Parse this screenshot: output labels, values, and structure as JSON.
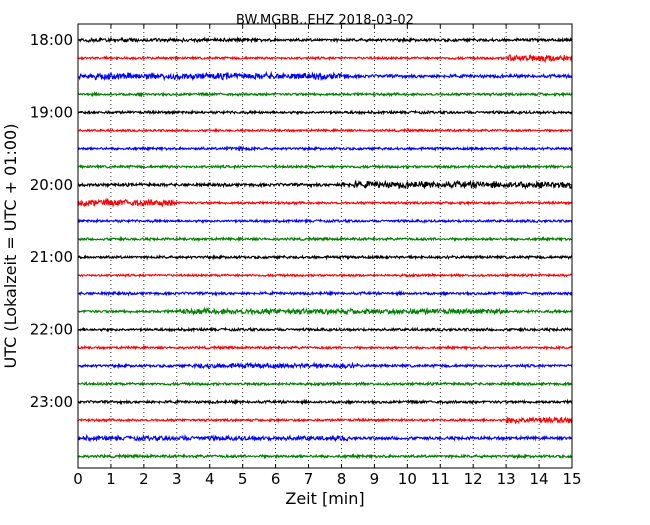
{
  "chart_data": {
    "type": "line",
    "title": "BW.MGBB..EHZ 2018-03-02",
    "xlabel": "Zeit  [min]",
    "ylabel": "UTC (Lokalzeit = UTC + 01:00)",
    "xlim": [
      0,
      15
    ],
    "x_ticks": [
      "0",
      "1",
      "2",
      "3",
      "4",
      "5",
      "6",
      "7",
      "8",
      "9",
      "10",
      "11",
      "12",
      "13",
      "14",
      "15"
    ],
    "y_tick_labels": [
      "18:00",
      "19:00",
      "20:00",
      "21:00",
      "22:00",
      "23:00"
    ],
    "grid": "x-dotted",
    "colors": {
      "black": "#000000",
      "red": "#ff0000",
      "blue": "#0000ff",
      "green": "#008000"
    },
    "series": [
      {
        "start": "18:00",
        "color": "black",
        "amp": 1.6,
        "bursts": [
          {
            "from": 0.0,
            "to": 5.5,
            "gain": 1.3
          }
        ]
      },
      {
        "start": "18:15",
        "color": "red",
        "amp": 1.3,
        "bursts": [
          {
            "from": 13.0,
            "to": 15.0,
            "gain": 3.0
          }
        ]
      },
      {
        "start": "18:30",
        "color": "blue",
        "amp": 1.8,
        "bursts": [
          {
            "from": 0.0,
            "to": 8.2,
            "gain": 2.0
          }
        ]
      },
      {
        "start": "18:45",
        "color": "green",
        "amp": 1.4,
        "bursts": []
      },
      {
        "start": "19:00",
        "color": "black",
        "amp": 1.5,
        "bursts": []
      },
      {
        "start": "19:15",
        "color": "red",
        "amp": 1.2,
        "bursts": []
      },
      {
        "start": "19:30",
        "color": "blue",
        "amp": 1.4,
        "bursts": [
          {
            "from": 4.5,
            "to": 5.3,
            "gain": 1.8
          }
        ]
      },
      {
        "start": "19:45",
        "color": "green",
        "amp": 1.4,
        "bursts": []
      },
      {
        "start": "20:00",
        "color": "black",
        "amp": 1.7,
        "bursts": [
          {
            "from": 8.0,
            "to": 15.0,
            "gain": 2.2
          }
        ]
      },
      {
        "start": "20:15",
        "color": "red",
        "amp": 1.3,
        "bursts": [
          {
            "from": 0.0,
            "to": 3.0,
            "gain": 3.0
          }
        ]
      },
      {
        "start": "20:30",
        "color": "blue",
        "amp": 1.4,
        "bursts": []
      },
      {
        "start": "20:45",
        "color": "green",
        "amp": 1.4,
        "bursts": []
      },
      {
        "start": "21:00",
        "color": "black",
        "amp": 1.5,
        "bursts": []
      },
      {
        "start": "21:15",
        "color": "red",
        "amp": 1.2,
        "bursts": []
      },
      {
        "start": "21:30",
        "color": "blue",
        "amp": 1.5,
        "bursts": []
      },
      {
        "start": "21:45",
        "color": "green",
        "amp": 1.5,
        "bursts": [
          {
            "from": 3.0,
            "to": 13.0,
            "gain": 2.0
          }
        ]
      },
      {
        "start": "22:00",
        "color": "black",
        "amp": 1.5,
        "bursts": []
      },
      {
        "start": "22:15",
        "color": "red",
        "amp": 1.3,
        "bursts": []
      },
      {
        "start": "22:30",
        "color": "blue",
        "amp": 1.5,
        "bursts": [
          {
            "from": 3.5,
            "to": 8.5,
            "gain": 1.8
          }
        ]
      },
      {
        "start": "22:45",
        "color": "green",
        "amp": 1.4,
        "bursts": []
      },
      {
        "start": "23:00",
        "color": "black",
        "amp": 1.5,
        "bursts": []
      },
      {
        "start": "23:15",
        "color": "red",
        "amp": 1.3,
        "bursts": [
          {
            "from": 13.0,
            "to": 15.0,
            "gain": 2.8
          }
        ]
      },
      {
        "start": "23:30",
        "color": "blue",
        "amp": 1.7,
        "bursts": [
          {
            "from": 0.0,
            "to": 8.2,
            "gain": 1.5
          }
        ]
      },
      {
        "start": "23:45",
        "color": "green",
        "amp": 1.5,
        "bursts": []
      }
    ]
  }
}
